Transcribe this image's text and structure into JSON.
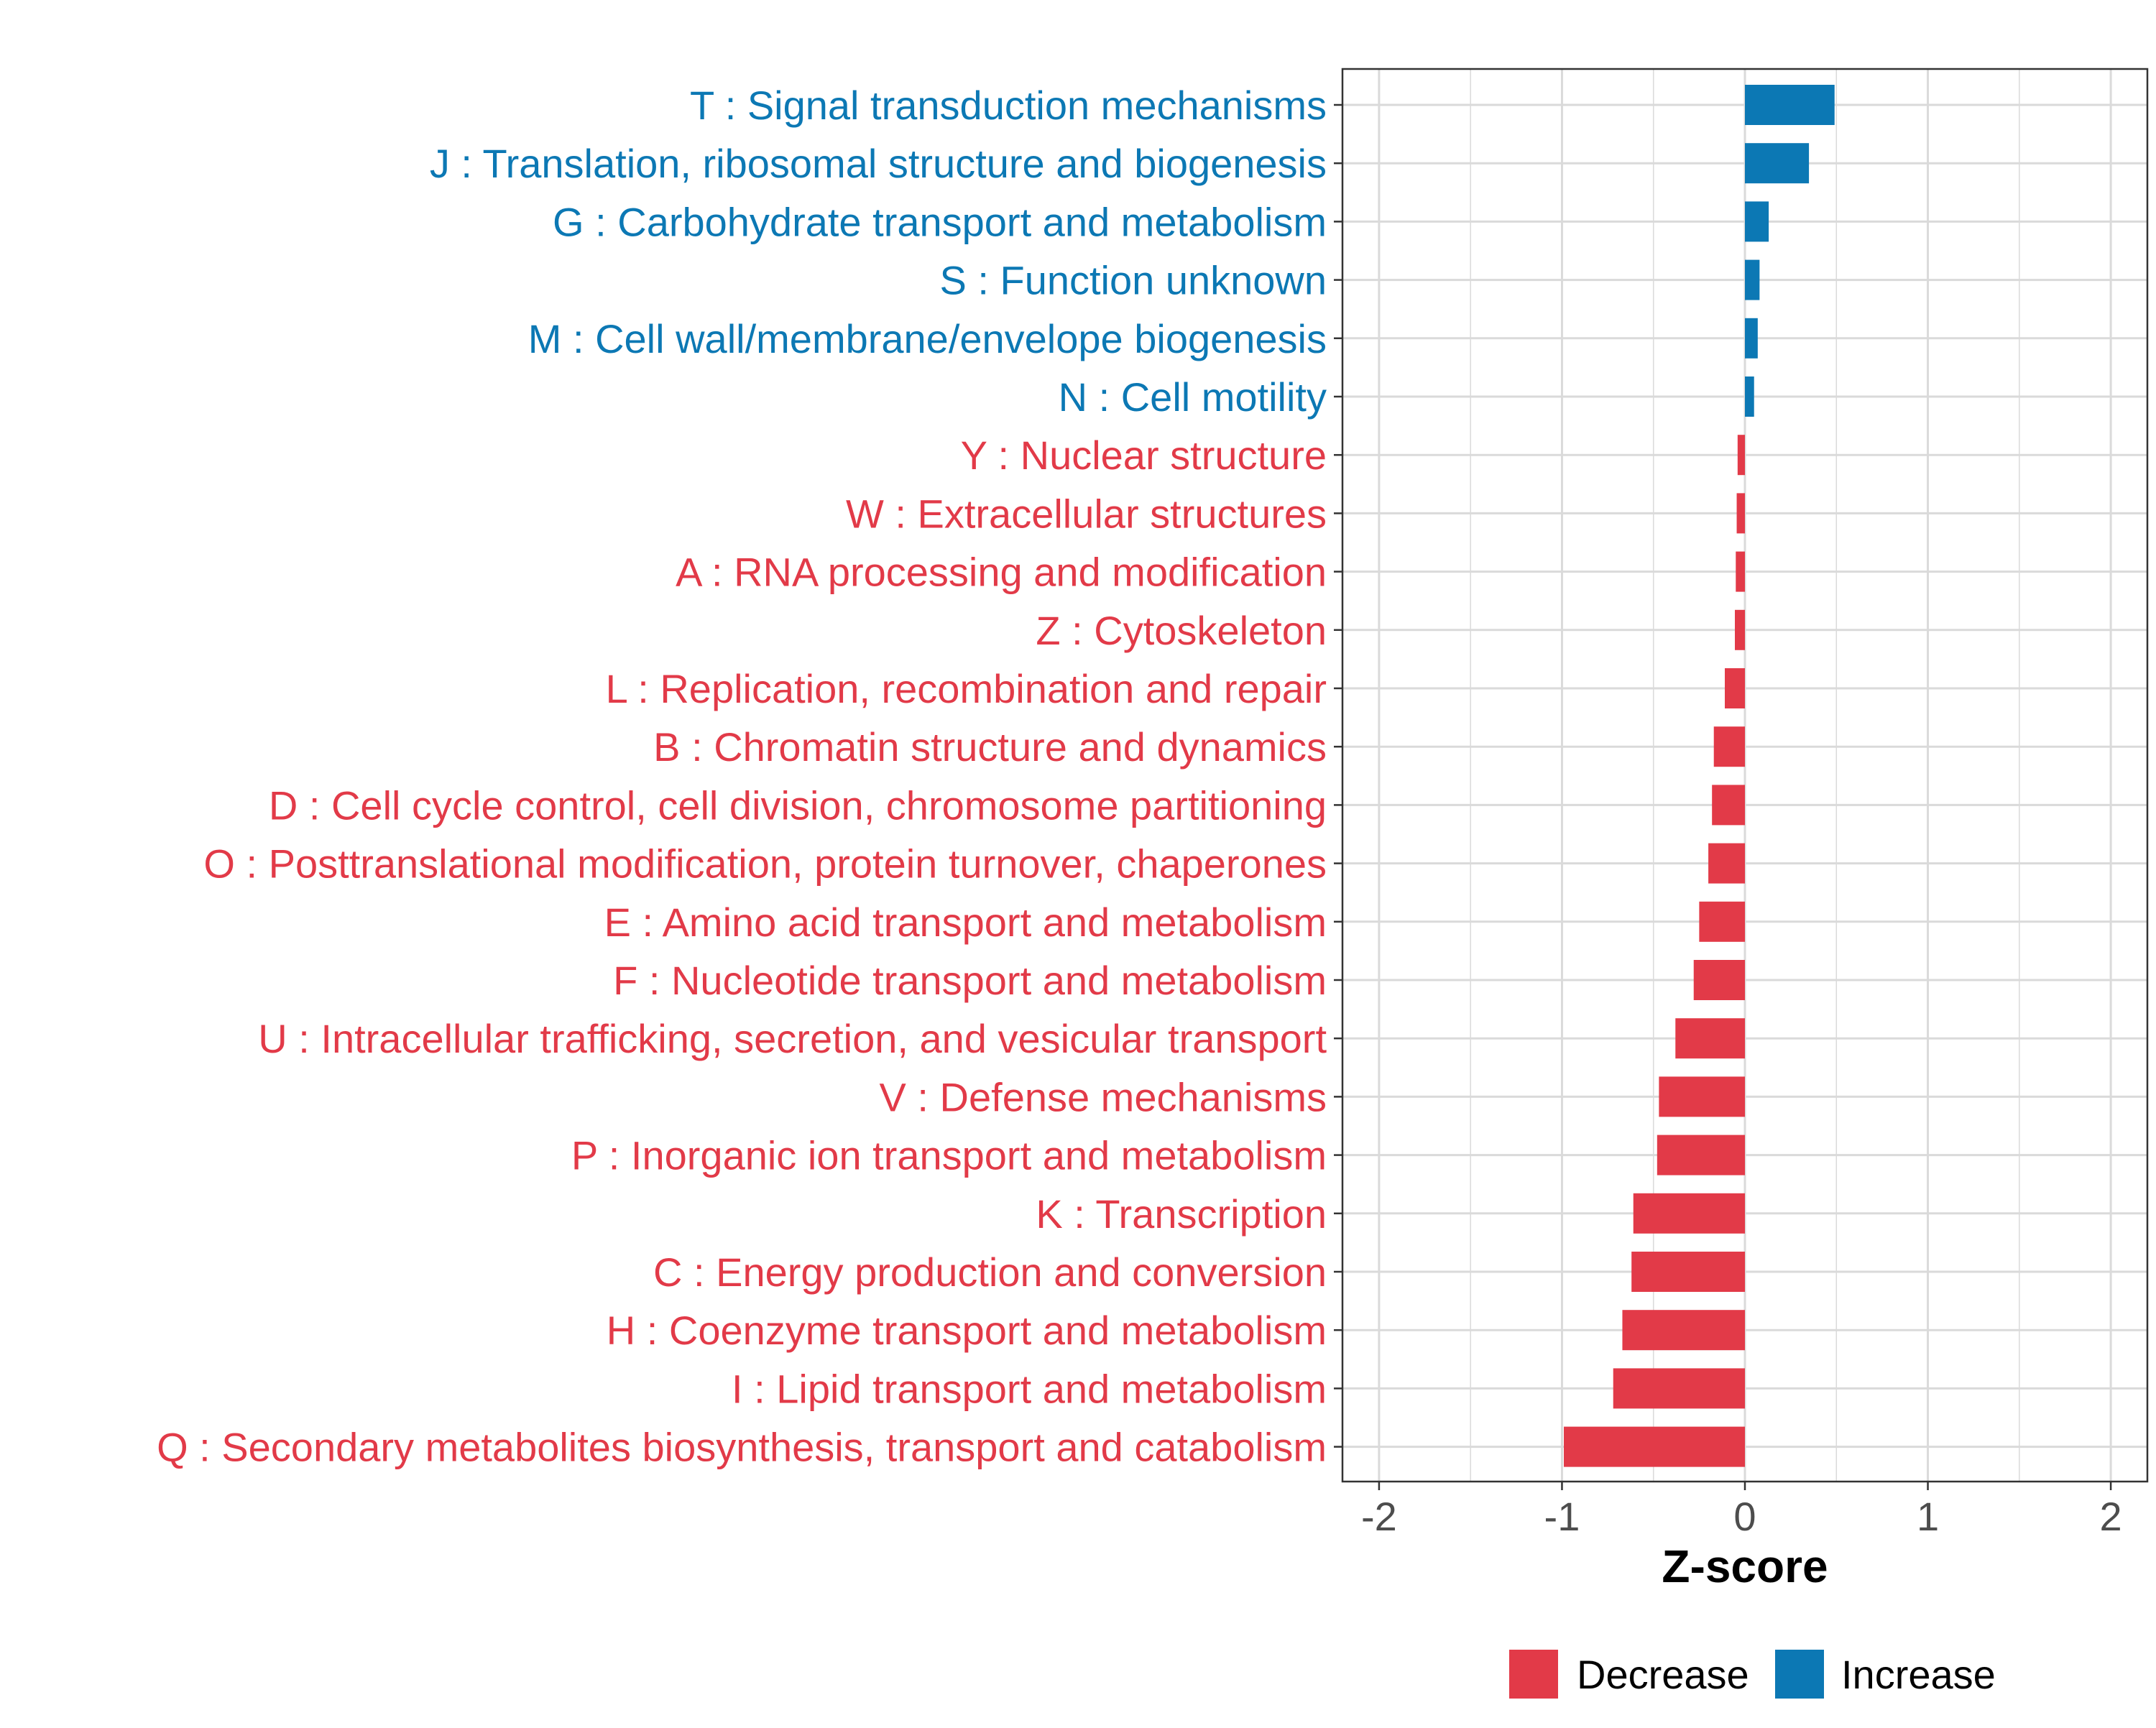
{
  "chart_data": {
    "type": "bar",
    "orientation": "horizontal",
    "title": "",
    "xlabel": "Z-score",
    "ylabel": "",
    "xlim": [
      -2.2,
      2.2
    ],
    "x_ticks": [
      {
        "value": -2,
        "label": "-2"
      },
      {
        "value": -1,
        "label": "-1"
      },
      {
        "value": 0,
        "label": "0"
      },
      {
        "value": 1,
        "label": "1"
      },
      {
        "value": 2,
        "label": "2"
      }
    ],
    "grid": true,
    "colors": {
      "increase": "#0C78B4",
      "decrease": "#E23A48",
      "grid": "#DADADA",
      "axis": "#333333",
      "tick_text": "#4D4D4D"
    },
    "legend": {
      "position": "bottom",
      "entries": [
        {
          "key": "decrease",
          "label": "Decrease"
        },
        {
          "key": "increase",
          "label": "Increase"
        }
      ]
    },
    "bars": [
      {
        "category": "T : Signal transduction mechanisms",
        "value": 0.49,
        "direction": "increase"
      },
      {
        "category": "J : Translation, ribosomal structure and biogenesis",
        "value": 0.35,
        "direction": "increase"
      },
      {
        "category": "G : Carbohydrate transport and metabolism",
        "value": 0.13,
        "direction": "increase"
      },
      {
        "category": "S : Function unknown",
        "value": 0.08,
        "direction": "increase"
      },
      {
        "category": "M : Cell wall/membrane/envelope biogenesis",
        "value": 0.07,
        "direction": "increase"
      },
      {
        "category": "N : Cell motility",
        "value": 0.05,
        "direction": "increase"
      },
      {
        "category": "Y : Nuclear structure",
        "value": -0.04,
        "direction": "decrease"
      },
      {
        "category": "W : Extracellular structures",
        "value": -0.045,
        "direction": "decrease"
      },
      {
        "category": "A : RNA processing and modification",
        "value": -0.05,
        "direction": "decrease"
      },
      {
        "category": "Z : Cytoskeleton",
        "value": -0.055,
        "direction": "decrease"
      },
      {
        "category": "L : Replication, recombination and repair",
        "value": -0.11,
        "direction": "decrease"
      },
      {
        "category": "B : Chromatin structure and dynamics",
        "value": -0.17,
        "direction": "decrease"
      },
      {
        "category": "D : Cell cycle control, cell division, chromosome partitioning",
        "value": -0.18,
        "direction": "decrease"
      },
      {
        "category": "O : Posttranslational modification, protein turnover, chaperones",
        "value": -0.2,
        "direction": "decrease"
      },
      {
        "category": "E : Amino acid transport and metabolism",
        "value": -0.25,
        "direction": "decrease"
      },
      {
        "category": "F : Nucleotide transport and metabolism",
        "value": -0.28,
        "direction": "decrease"
      },
      {
        "category": "U : Intracellular trafficking, secretion, and vesicular transport",
        "value": -0.38,
        "direction": "decrease"
      },
      {
        "category": "V : Defense mechanisms",
        "value": -0.47,
        "direction": "decrease"
      },
      {
        "category": "P : Inorganic ion transport and metabolism",
        "value": -0.48,
        "direction": "decrease"
      },
      {
        "category": "K : Transcription",
        "value": -0.61,
        "direction": "decrease"
      },
      {
        "category": "C : Energy production and conversion",
        "value": -0.62,
        "direction": "decrease"
      },
      {
        "category": "H : Coenzyme transport and metabolism",
        "value": -0.67,
        "direction": "decrease"
      },
      {
        "category": "I : Lipid transport and metabolism",
        "value": -0.72,
        "direction": "decrease"
      },
      {
        "category": "Q : Secondary metabolites biosynthesis, transport and catabolism",
        "value": -0.99,
        "direction": "decrease"
      }
    ]
  }
}
